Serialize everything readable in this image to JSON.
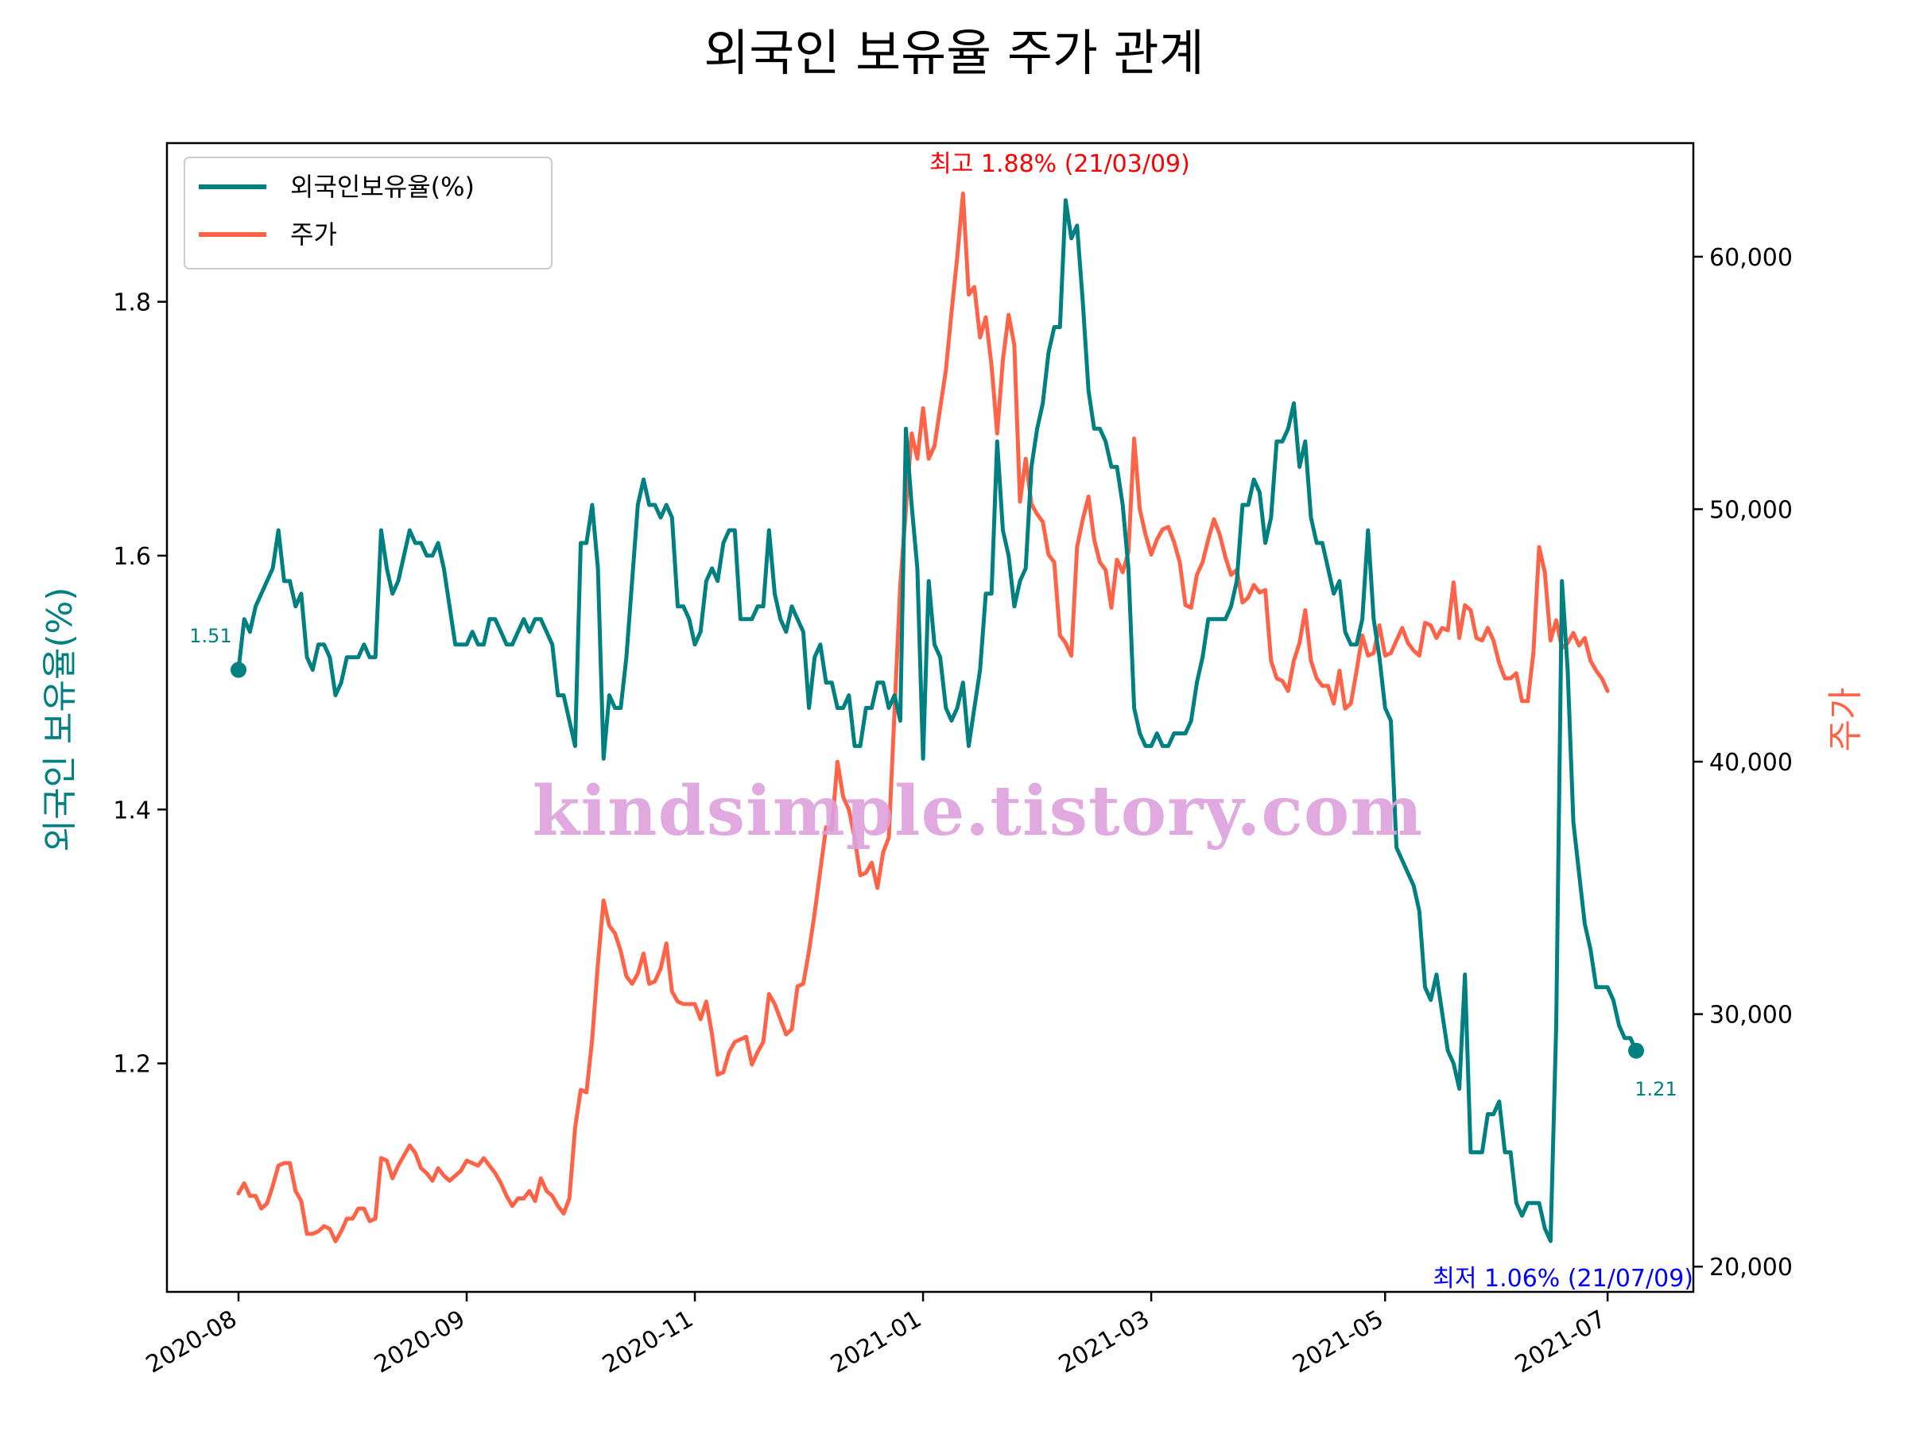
{
  "chart_data": {
    "type": "line",
    "title": "외국인 보유율 주가 관계",
    "ylabel_left": "외국인 보유율(%)",
    "ylabel_right": "주가",
    "left_ylim": [
      1.02,
      1.925
    ],
    "right_ylim": [
      19000,
      64500
    ],
    "left_yticks": [
      1.2,
      1.4,
      1.6,
      1.8
    ],
    "left_yticklabels": [
      "1.2",
      "1.4",
      "1.6",
      "1.8"
    ],
    "right_yticks": [
      20000,
      30000,
      40000,
      50000,
      60000
    ],
    "right_yticklabels": [
      "20,000",
      "30,000",
      "40,000",
      "50,000",
      "60,000"
    ],
    "xticklabels": [
      "2020-08",
      "2020-09",
      "2020-11",
      "2021-01",
      "2021-03",
      "2021-05",
      "2021-07"
    ],
    "legend": {
      "placement": "top-left",
      "entries": [
        "외국인보유율(%)",
        "주가"
      ]
    },
    "colors": {
      "holding": "#008080",
      "price": "#ff6347",
      "max_annotation": "#ff0000",
      "min_annotation": "#0000ff",
      "watermark": "#dda0dd"
    },
    "annotations": {
      "start_label": "1.51",
      "end_label": "1.21",
      "max_label": "최고 1.88% (21/03/09)",
      "min_label": "최저 1.06% (21/07/09)"
    },
    "watermark": "kindsimple.tistory.com",
    "series": [
      {
        "name": "외국인보유율(%)",
        "axis": "left",
        "values": [
          1.51,
          1.55,
          1.54,
          1.56,
          1.57,
          1.58,
          1.59,
          1.62,
          1.58,
          1.58,
          1.56,
          1.57,
          1.52,
          1.51,
          1.53,
          1.53,
          1.52,
          1.49,
          1.5,
          1.52,
          1.52,
          1.52,
          1.53,
          1.52,
          1.52,
          1.62,
          1.59,
          1.57,
          1.58,
          1.6,
          1.62,
          1.61,
          1.61,
          1.6,
          1.6,
          1.61,
          1.59,
          1.56,
          1.53,
          1.53,
          1.53,
          1.54,
          1.53,
          1.53,
          1.55,
          1.55,
          1.54,
          1.53,
          1.53,
          1.54,
          1.55,
          1.54,
          1.55,
          1.55,
          1.54,
          1.53,
          1.49,
          1.49,
          1.47,
          1.45,
          1.61,
          1.61,
          1.64,
          1.59,
          1.44,
          1.49,
          1.48,
          1.48,
          1.52,
          1.58,
          1.64,
          1.66,
          1.64,
          1.64,
          1.63,
          1.64,
          1.63,
          1.56,
          1.56,
          1.55,
          1.53,
          1.54,
          1.58,
          1.59,
          1.58,
          1.61,
          1.62,
          1.62,
          1.55,
          1.55,
          1.55,
          1.56,
          1.56,
          1.62,
          1.57,
          1.55,
          1.54,
          1.56,
          1.55,
          1.54,
          1.48,
          1.52,
          1.53,
          1.5,
          1.5,
          1.48,
          1.48,
          1.49,
          1.45,
          1.45,
          1.48,
          1.48,
          1.5,
          1.5,
          1.48,
          1.49,
          1.47,
          1.7,
          1.64,
          1.59,
          1.44,
          1.58,
          1.53,
          1.52,
          1.48,
          1.47,
          1.48,
          1.5,
          1.45,
          1.48,
          1.51,
          1.57,
          1.57,
          1.69,
          1.62,
          1.6,
          1.56,
          1.58,
          1.59,
          1.67,
          1.7,
          1.72,
          1.76,
          1.78,
          1.78,
          1.88,
          1.85,
          1.86,
          1.8,
          1.73,
          1.7,
          1.7,
          1.69,
          1.67,
          1.67,
          1.64,
          1.59,
          1.48,
          1.46,
          1.45,
          1.45,
          1.46,
          1.45,
          1.45,
          1.46,
          1.46,
          1.46,
          1.47,
          1.5,
          1.52,
          1.55,
          1.55,
          1.55,
          1.55,
          1.56,
          1.58,
          1.64,
          1.64,
          1.66,
          1.65,
          1.61,
          1.63,
          1.69,
          1.69,
          1.7,
          1.72,
          1.67,
          1.69,
          1.63,
          1.61,
          1.61,
          1.59,
          1.57,
          1.58,
          1.54,
          1.53,
          1.53,
          1.55,
          1.62,
          1.55,
          1.52,
          1.48,
          1.47,
          1.37,
          1.36,
          1.35,
          1.34,
          1.32,
          1.26,
          1.25,
          1.27,
          1.24,
          1.21,
          1.2,
          1.18,
          1.27,
          1.13,
          1.13,
          1.13,
          1.16,
          1.16,
          1.17,
          1.13,
          1.13,
          1.09,
          1.08,
          1.09,
          1.09,
          1.09,
          1.07,
          1.06,
          1.23,
          1.58,
          1.51,
          1.39,
          1.35,
          1.31,
          1.29,
          1.26,
          1.26,
          1.26,
          1.25,
          1.23,
          1.22,
          1.22,
          1.21
        ]
      },
      {
        "name": "주가",
        "axis": "right",
        "values": [
          22900,
          23300,
          22800,
          22800,
          22300,
          22500,
          23200,
          24000,
          24100,
          24100,
          23000,
          22600,
          21300,
          21300,
          21400,
          21600,
          21500,
          21000,
          21400,
          21900,
          21900,
          22300,
          22300,
          21800,
          21900,
          24300,
          24200,
          23500,
          24000,
          24400,
          24800,
          24500,
          23900,
          23700,
          23400,
          23900,
          23600,
          23400,
          23600,
          23800,
          24200,
          24100,
          24000,
          24300,
          24000,
          23700,
          23300,
          22800,
          22400,
          22700,
          22700,
          23000,
          22600,
          23500,
          23000,
          22800,
          22400,
          22100,
          22700,
          25500,
          27000,
          26900,
          29000,
          32000,
          34500,
          33500,
          33200,
          32500,
          31500,
          31200,
          31600,
          32400,
          31200,
          31300,
          31800,
          32800,
          30900,
          30500,
          30400,
          30400,
          30400,
          29800,
          30500,
          29200,
          27600,
          27700,
          28500,
          28900,
          29000,
          29100,
          28000,
          28500,
          28900,
          30800,
          30400,
          29800,
          29200,
          29400,
          31100,
          31200,
          32500,
          34000,
          35700,
          37400,
          37300,
          40000,
          38600,
          38100,
          37000,
          35500,
          35600,
          36000,
          35000,
          36400,
          37000,
          42000,
          47000,
          50000,
          53000,
          52000,
          54000,
          52000,
          52500,
          54000,
          55500,
          57800,
          60000,
          62500,
          58500,
          58800,
          56800,
          57600,
          55700,
          53000,
          55900,
          57700,
          56500,
          50300,
          52000,
          50200,
          49800,
          49500,
          48200,
          47900,
          45000,
          44700,
          44200,
          48500,
          49600,
          50500,
          48800,
          47900,
          47600,
          46100,
          48000,
          47500,
          48300,
          52800,
          50000,
          49000,
          48200,
          48800,
          49200,
          49300,
          48700,
          47900,
          46200,
          46100,
          47400,
          47900,
          48800,
          49600,
          49000,
          48100,
          47400,
          47600,
          46300,
          46500,
          47000,
          46700,
          46800,
          44000,
          43300,
          43200,
          42800,
          44000,
          44700,
          46000,
          44000,
          43300,
          43000,
          43000,
          42300,
          43600,
          42100,
          42300,
          43600,
          45000,
          44200,
          44300,
          45400,
          44200,
          44300,
          44800,
          45300,
          44700,
          44400,
          44200,
          45500,
          45400,
          44900,
          45300,
          45200,
          47100,
          44900,
          46200,
          46000,
          44900,
          44800,
          45300,
          44800,
          43900,
          43300,
          43300,
          43500,
          42400,
          42400,
          44300,
          48500,
          47500,
          44800,
          45600,
          44500,
          44700,
          45100,
          44600,
          44900,
          44000,
          43600,
          43300,
          42800
        ]
      }
    ]
  }
}
